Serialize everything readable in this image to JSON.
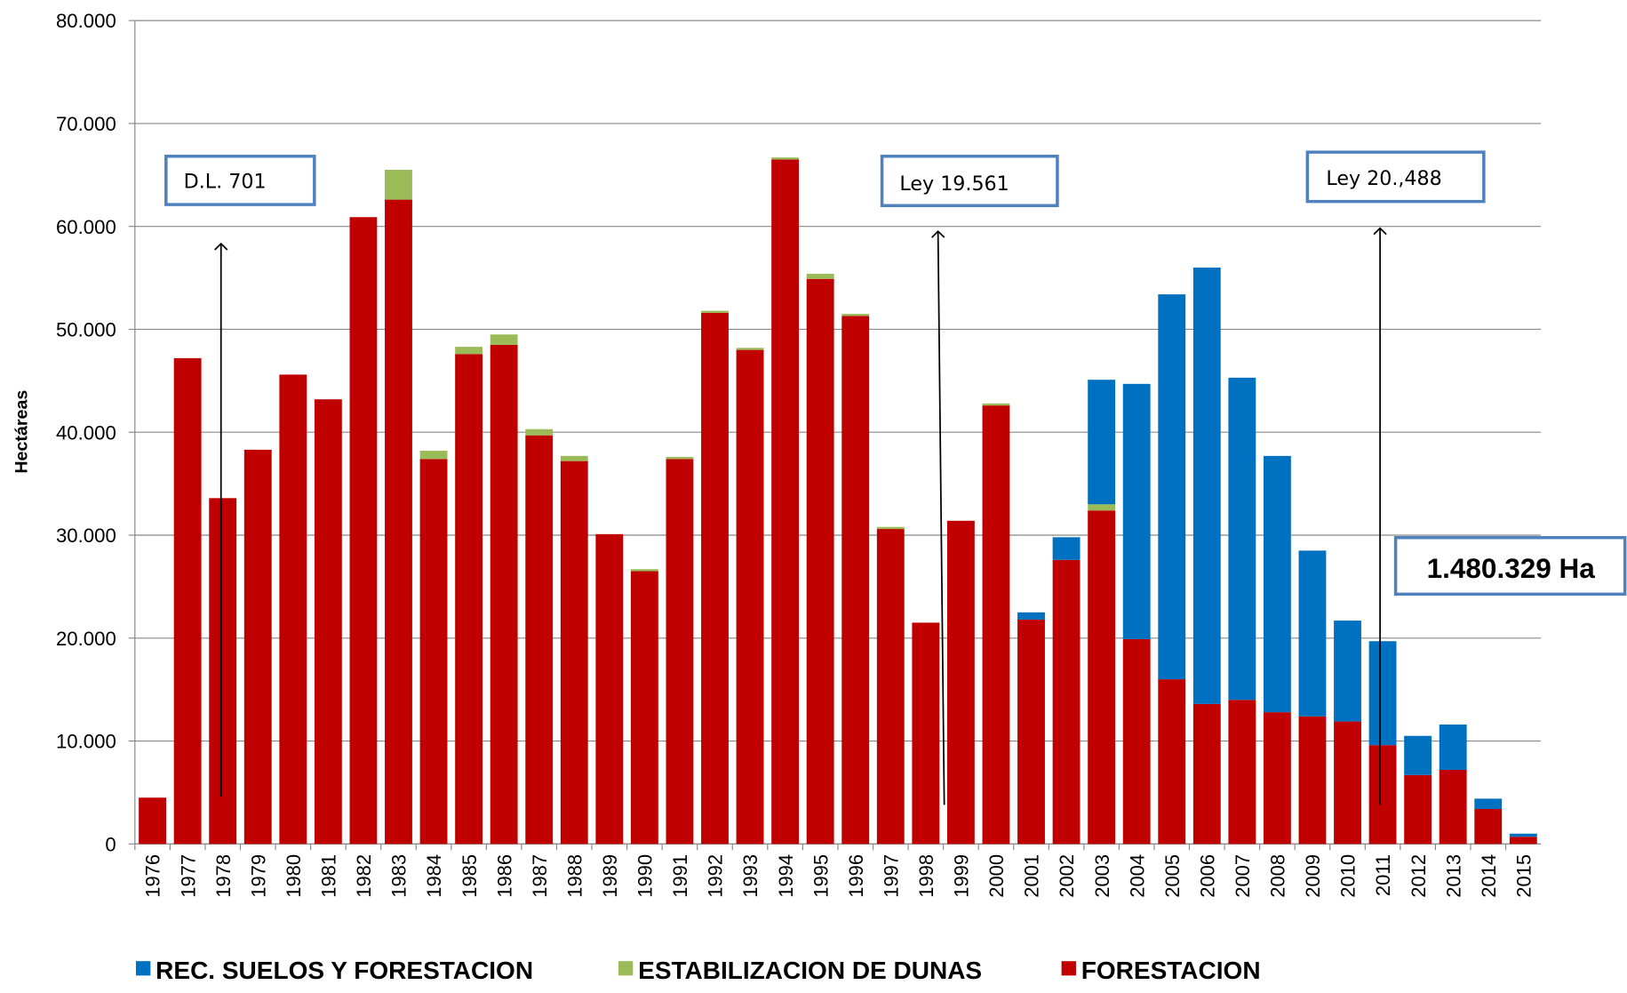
{
  "chart_data": {
    "type": "stacked_bar",
    "y_label": "Hectáreas",
    "categories": [
      "1976",
      "1977",
      "1978",
      "1979",
      "1980",
      "1981",
      "1982",
      "1983",
      "1984",
      "1985",
      "1986",
      "1987",
      "1988",
      "1989",
      "1990",
      "1991",
      "1992",
      "1993",
      "1994",
      "1995",
      "1996",
      "1997",
      "1998",
      "1999",
      "2000",
      "2001",
      "2002",
      "2003",
      "2004",
      "2005",
      "2006",
      "2007",
      "2008",
      "2009",
      "2010",
      "2011",
      "2012",
      "2013",
      "2014",
      "2015"
    ],
    "series": [
      {
        "name": "FORESTACION",
        "color": "#c00000",
        "values": [
          4500,
          47200,
          33600,
          38300,
          45600,
          43200,
          60900,
          62600,
          37400,
          47600,
          48500,
          39700,
          37200,
          30100,
          26500,
          37400,
          51600,
          48000,
          66500,
          54900,
          51300,
          30600,
          21500,
          31400,
          42600,
          21800,
          27600,
          32400,
          19900,
          16000,
          13600,
          14000,
          12800,
          12400,
          11900,
          9600,
          6700,
          7200,
          3400,
          700
        ]
      },
      {
        "name": "ESTABILIZACION DE DUNAS",
        "color": "#9bbb59",
        "values": [
          0,
          0,
          0,
          0,
          0,
          0,
          0,
          2900,
          800,
          700,
          1000,
          600,
          500,
          0,
          200,
          200,
          200,
          200,
          200,
          500,
          200,
          200,
          0,
          0,
          200,
          0,
          0,
          600,
          0,
          0,
          0,
          0,
          0,
          0,
          0,
          0,
          0,
          0,
          0,
          0
        ]
      },
      {
        "name": "REC. SUELOS Y FORESTACION",
        "color": "#0070c0",
        "values": [
          0,
          0,
          0,
          0,
          0,
          0,
          0,
          0,
          0,
          0,
          0,
          0,
          0,
          0,
          0,
          0,
          0,
          0,
          0,
          0,
          0,
          0,
          0,
          0,
          0,
          700,
          2200,
          12100,
          24800,
          37400,
          42400,
          31300,
          24900,
          16100,
          9800,
          10100,
          3800,
          4400,
          1000,
          300
        ]
      }
    ],
    "ylim": [
      0,
      80000
    ],
    "yticks": [
      0,
      {
        "value": 10000,
        "label": "10.000"
      },
      {
        "value": 20000,
        "label": "20.000"
      },
      {
        "value": 30000,
        "label": "30.000"
      },
      {
        "value": 40000,
        "label": "40.000"
      },
      {
        "value": 50000,
        "label": "50.000"
      },
      {
        "value": 60000,
        "label": "60.000"
      },
      {
        "value": 70000,
        "label": "70.000"
      },
      {
        "value": 80000,
        "label": "80.000"
      }
    ],
    "grid": true,
    "annotations": [
      "D.L. 701",
      "Ley 19.561",
      "Ley 20.,488",
      "1.480.329 Ha"
    ]
  }
}
